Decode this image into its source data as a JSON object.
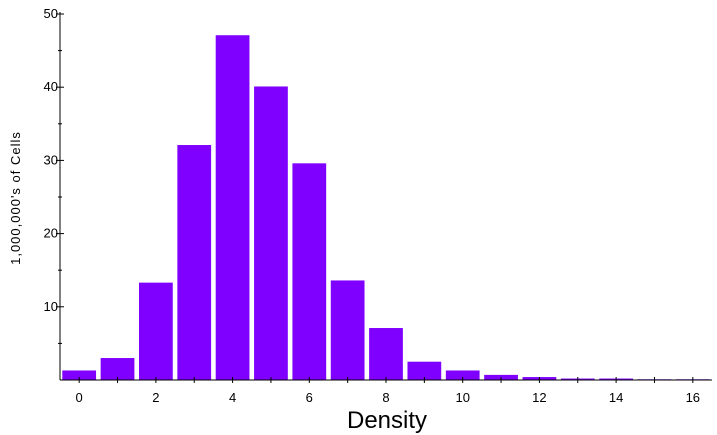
{
  "chart_data": {
    "type": "bar",
    "title": "",
    "xlabel": "Density",
    "ylabel": "1,000,000's of Cells",
    "x": [
      0,
      1,
      2,
      3,
      4,
      5,
      6,
      7,
      8,
      9,
      10,
      11,
      12,
      13,
      14,
      15,
      16
    ],
    "values": [
      1.3,
      3.0,
      13.3,
      32.1,
      47.1,
      40.1,
      29.6,
      13.6,
      7.1,
      2.5,
      1.3,
      0.7,
      0.4,
      0.2,
      0.2,
      0.1,
      0.1
    ],
    "xticks": [
      "0",
      "2",
      "4",
      "6",
      "8",
      "10",
      "12",
      "14",
      "16"
    ],
    "yticks": [
      "10",
      "20",
      "30",
      "40",
      "50"
    ],
    "xlim": [
      -0.5,
      16.5
    ],
    "ylim": [
      0,
      50
    ],
    "grid": false,
    "colors": {
      "bar": "#7f00ff",
      "axis": "#000000"
    }
  }
}
